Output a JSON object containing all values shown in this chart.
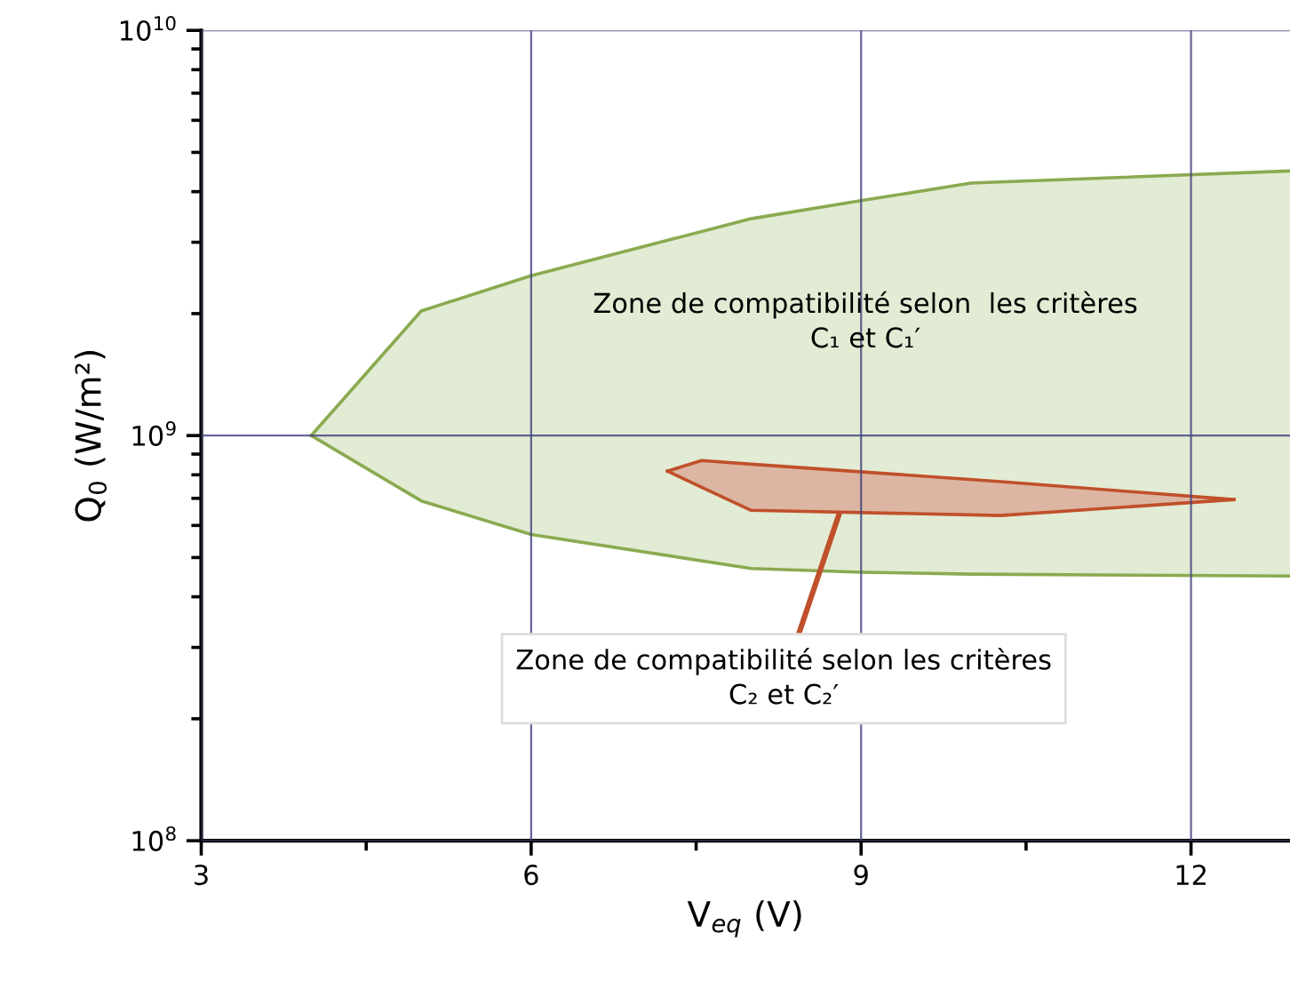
{
  "chart_data": {
    "type": "area",
    "xlabel": "V$_{eq}$ (V)",
    "ylabel": "Q$_{0}$ (W/m²)",
    "log": "y",
    "xlim": [
      3,
      12.9
    ],
    "ylim": [
      100000000,
      10000000000
    ],
    "xticks": [
      3,
      6,
      9,
      12
    ],
    "yticks": [
      {
        "value": 100000000,
        "label": "10$^{8}$"
      },
      {
        "value": 1000000000,
        "label": "10$^{9}$"
      },
      {
        "value": 10000000000,
        "label": "10$^{10}$"
      }
    ],
    "grid": true,
    "series": [
      {
        "color": "#e2ebd3",
        "x": [
          4,
          5,
          6,
          8,
          9,
          10,
          12.9
        ],
        "values": [
          1000000000,
          2030000000,
          2480000000,
          3430000000,
          3800000000,
          4200000000,
          4500000000
        ]
      },
      {
        "type": "line",
        "color": "#8aaa50",
        "x": [
          4,
          5,
          6,
          8,
          9,
          10,
          12.9
        ],
        "values": [
          1000000000,
          690000000,
          570000000,
          470000000,
          460000000,
          455000000,
          450000000
        ]
      },
      {
        "color": "#dcb6a2",
        "x": [
          7.24,
          7.55,
          8.0,
          10.27,
          12.39
        ],
        "values": [
          817000000,
          868000000,
          850000000,
          770000000,
          695000000
        ]
      },
      {
        "type": "line",
        "color": "#c0502a",
        "x": [
          7.24,
          7.55,
          8.0,
          10.27,
          12.39
        ],
        "values": [
          817000000,
          745000000,
          654000000,
          635000000,
          695000000
        ]
      }
    ],
    "annotations": [
      "Zone de compatibilité selon  les critères\nC₁ et C₁′",
      {
        "text": "Zone de compatibilité selon les critères\nC₂ et C₂′",
        "x": 8.8,
        "y": 640000000
      }
    ]
  }
}
